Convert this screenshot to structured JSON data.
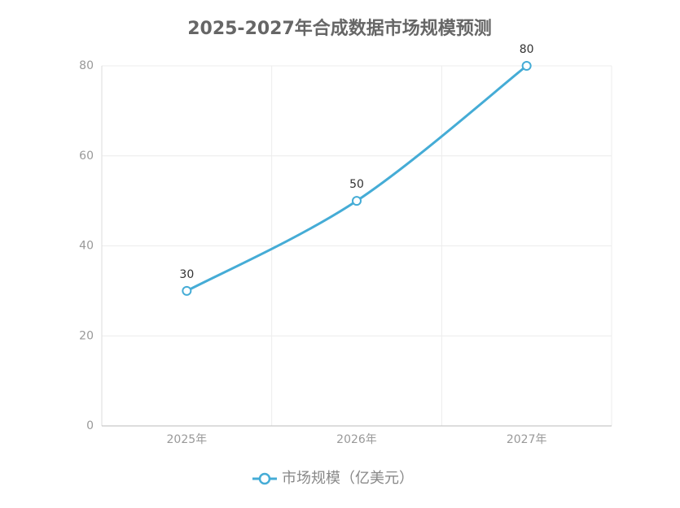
{
  "chart_data": {
    "type": "line",
    "title": "2025-2027年合成数据市场规模预测",
    "categories": [
      "2025年",
      "2026年",
      "2027年"
    ],
    "series": [
      {
        "name": "市场规模（亿美元）",
        "color": "#45acd6",
        "values": [
          30,
          50,
          80
        ]
      }
    ],
    "ylim": [
      0,
      80
    ],
    "yticks": [
      0,
      20,
      40,
      60,
      80
    ],
    "grid": true,
    "smooth": true,
    "legend": "bottom"
  }
}
